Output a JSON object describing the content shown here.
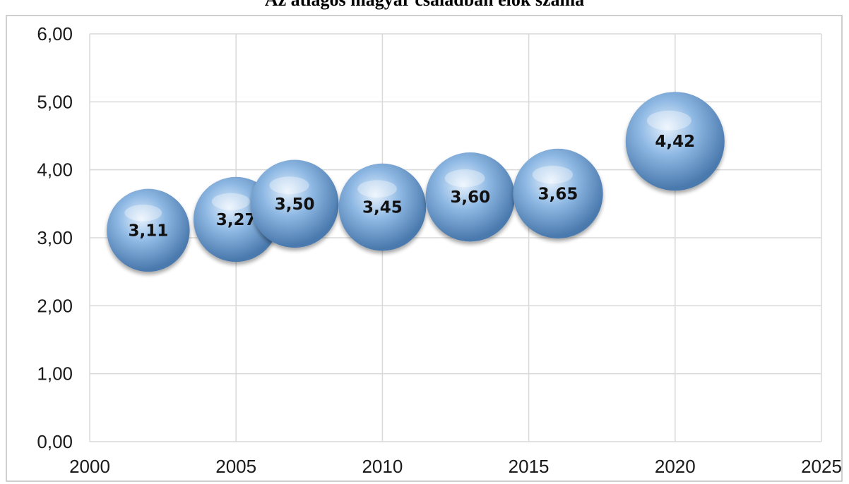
{
  "chart_data": {
    "type": "bubble",
    "title": "Az átlagos magyar családban élők száma",
    "xlabel": "",
    "ylabel": "",
    "xlim": [
      2000,
      2025
    ],
    "ylim": [
      0,
      6
    ],
    "x_ticks": [
      2000,
      2005,
      2010,
      2015,
      2020,
      2025
    ],
    "y_ticks": [
      0,
      1,
      2,
      3,
      4,
      5,
      6
    ],
    "y_tick_labels": [
      "0,00",
      "1,00",
      "2,00",
      "3,00",
      "4,00",
      "5,00",
      "6,00"
    ],
    "grid": true,
    "legend": "none",
    "points": [
      {
        "x": 2002,
        "y": 3.11,
        "size": 3.11,
        "label": "3,11"
      },
      {
        "x": 2005,
        "y": 3.27,
        "size": 3.27,
        "label": "3,27"
      },
      {
        "x": 2007,
        "y": 3.5,
        "size": 3.5,
        "label": "3,50"
      },
      {
        "x": 2010,
        "y": 3.45,
        "size": 3.45,
        "label": "3,45"
      },
      {
        "x": 2013,
        "y": 3.6,
        "size": 3.6,
        "label": "3,60"
      },
      {
        "x": 2016,
        "y": 3.65,
        "size": 3.65,
        "label": "3,65"
      },
      {
        "x": 2020,
        "y": 4.42,
        "size": 4.42,
        "label": "4,42"
      }
    ],
    "colors": {
      "bubble_highlight": "#e6f1fc",
      "bubble_mid": "#8fb9e4",
      "bubble_edge": "#4a79ad",
      "grid": "#d9d9d9",
      "plot_border": "#bfbfbf"
    }
  }
}
